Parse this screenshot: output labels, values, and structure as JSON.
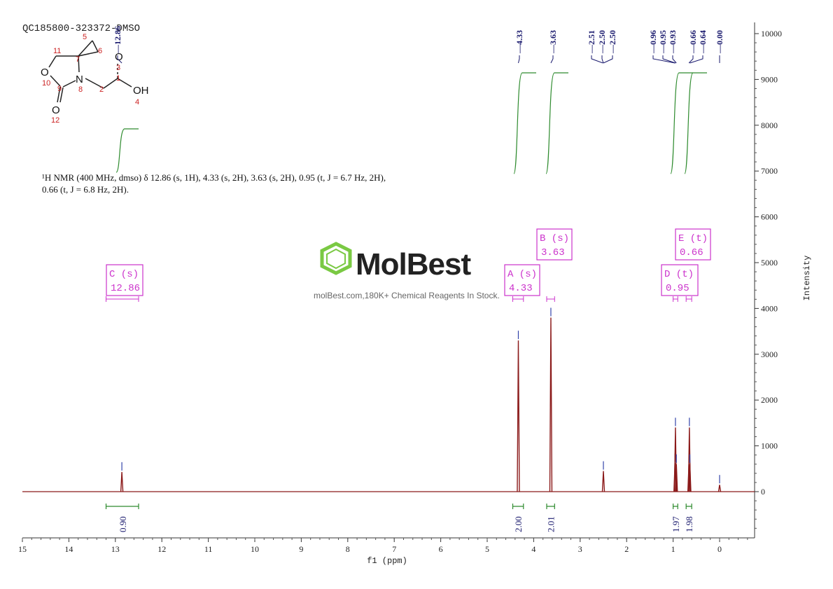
{
  "sample_id": "QC185800-323372-DMSO",
  "watermark": {
    "brand": "MolBest",
    "tagline": "molBest.com,180K+ Chemical Reagents In Stock."
  },
  "description": {
    "line1": "¹H NMR (400 MHz, dmso) δ 12.86 (s, 1H), 4.33 (s, 2H), 3.63 (s, 2H), 0.95 (t, J = 6.7 Hz, 2H),",
    "line2": "0.66 (t, J = 6.8 Hz, 2H)."
  },
  "structure": {
    "atoms": [
      "O",
      "O",
      "N",
      "O",
      "OH"
    ],
    "numbers": [
      "5",
      "11",
      "7",
      "6",
      "3",
      "1",
      "10",
      "9",
      "8",
      "2",
      "4",
      "12"
    ]
  },
  "colors": {
    "spectrum": "#8b1a1a",
    "integral": "#2e8b2e",
    "label_navy": "#1a1a6e",
    "box": "#cc33cc",
    "watermark": "#7ac943"
  },
  "chart_data": {
    "type": "line",
    "xlabel": "f1 (ppm)",
    "ylabel": "Intensity",
    "xlim": [
      15,
      -0.75
    ],
    "ylim": [
      -1000,
      10200
    ],
    "x_ticks": [
      15,
      14,
      13,
      12,
      11,
      10,
      9,
      8,
      7,
      6,
      5,
      4,
      3,
      2,
      1,
      0
    ],
    "y_ticks": [
      0,
      1000,
      2000,
      3000,
      4000,
      5000,
      6000,
      7000,
      8000,
      9000,
      10000
    ],
    "peaks": [
      {
        "x": 12.86,
        "height": 430
      },
      {
        "x": 4.33,
        "height": 3300
      },
      {
        "x": 3.63,
        "height": 3800
      },
      {
        "x": 2.5,
        "height": 450
      },
      {
        "x": 0.96,
        "height": 620
      },
      {
        "x": 0.95,
        "height": 1400
      },
      {
        "x": 0.93,
        "height": 600
      },
      {
        "x": 0.66,
        "height": 600
      },
      {
        "x": 0.65,
        "height": 1400
      },
      {
        "x": 0.64,
        "height": 600
      },
      {
        "x": 0.0,
        "height": 150
      }
    ],
    "peak_labels": [
      "12.86",
      "4.33",
      "3.63",
      "2.51",
      "2.50",
      "2.50",
      "0.96",
      "0.95",
      "0.93",
      "0.66",
      "0.64",
      "0.00"
    ],
    "multiplets": [
      {
        "letter": "C (s)",
        "shift": "12.86",
        "range": [
          13.2,
          12.5
        ]
      },
      {
        "letter": "A (s)",
        "shift": "4.33",
        "range": [
          4.45,
          4.22
        ]
      },
      {
        "letter": "B (s)",
        "shift": "3.63",
        "range": [
          3.72,
          3.55
        ]
      },
      {
        "letter": "D (t)",
        "shift": "0.95",
        "range": [
          1.0,
          0.9
        ]
      },
      {
        "letter": "E (t)",
        "shift": "0.66",
        "range": [
          0.72,
          0.6
        ]
      }
    ],
    "integrals": [
      {
        "value": "0.90",
        "range": [
          13.2,
          12.5
        ]
      },
      {
        "value": "2.00",
        "range": [
          4.45,
          4.22
        ]
      },
      {
        "value": "2.01",
        "range": [
          3.72,
          3.55
        ]
      },
      {
        "value": "1.97",
        "range": [
          1.0,
          0.9
        ]
      },
      {
        "value": "1.98",
        "range": [
          0.72,
          0.6
        ]
      }
    ]
  }
}
